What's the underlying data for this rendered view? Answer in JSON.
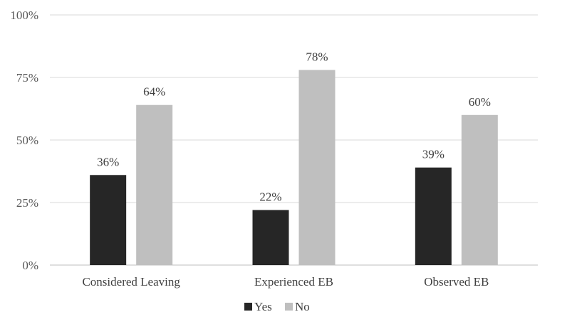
{
  "chart_data": {
    "type": "bar",
    "title": "",
    "xlabel": "",
    "ylabel": "",
    "categories": [
      "Considered Leaving",
      "Experienced EB",
      "Observed EB"
    ],
    "series": [
      {
        "name": "Yes",
        "values": [
          36,
          22,
          39
        ],
        "labels": [
          "36%",
          "22%",
          "39%"
        ],
        "color": "#262626"
      },
      {
        "name": "No",
        "values": [
          64,
          78,
          60
        ],
        "labels": [
          "64%",
          "78%",
          "60%"
        ],
        "color": "#bfbfbf"
      }
    ],
    "ylim": [
      0,
      100
    ],
    "yticks": [
      0,
      25,
      50,
      75,
      100
    ],
    "ytick_labels": [
      "0%",
      "25%",
      "50%",
      "75%",
      "100%"
    ],
    "grid": true,
    "legend_position": "bottom"
  }
}
